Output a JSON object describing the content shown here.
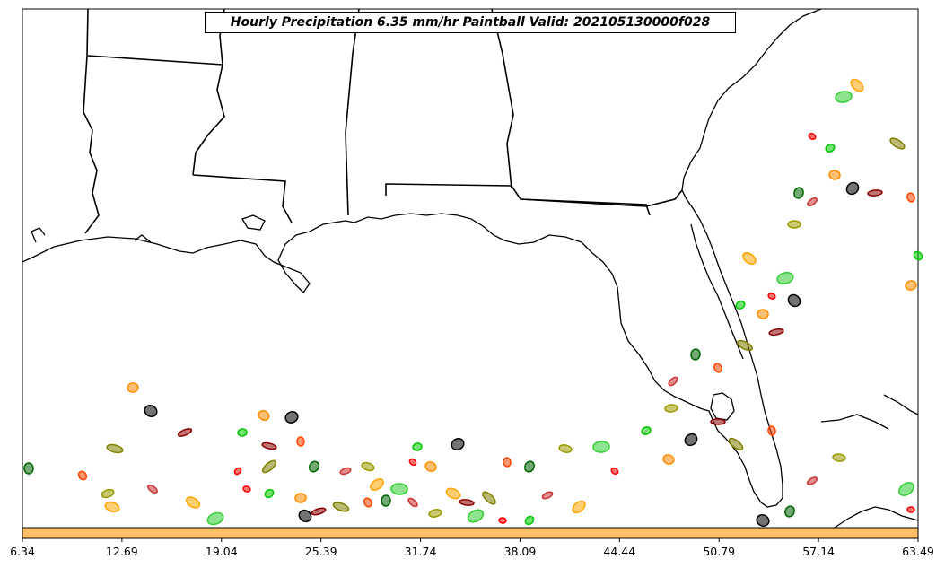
{
  "title": "Hourly Precipitation 6.35 mm/hr Paintball Valid: 202105130000f028",
  "colorbar": {
    "fill_color": "#ffbf66",
    "tick_labels": [
      "6.34",
      "12.69",
      "19.04",
      "25.39",
      "31.74",
      "38.09",
      "44.44",
      "50.79",
      "57.14",
      "63.49"
    ]
  },
  "member_colors": [
    "#ff0000",
    "#00c800",
    "#ff8c00",
    "#000000",
    "#8b0000",
    "#808000",
    "#ff4500",
    "#006400",
    "#cc3333",
    "#9a9a00",
    "#ffa500",
    "#32cd32"
  ]
}
